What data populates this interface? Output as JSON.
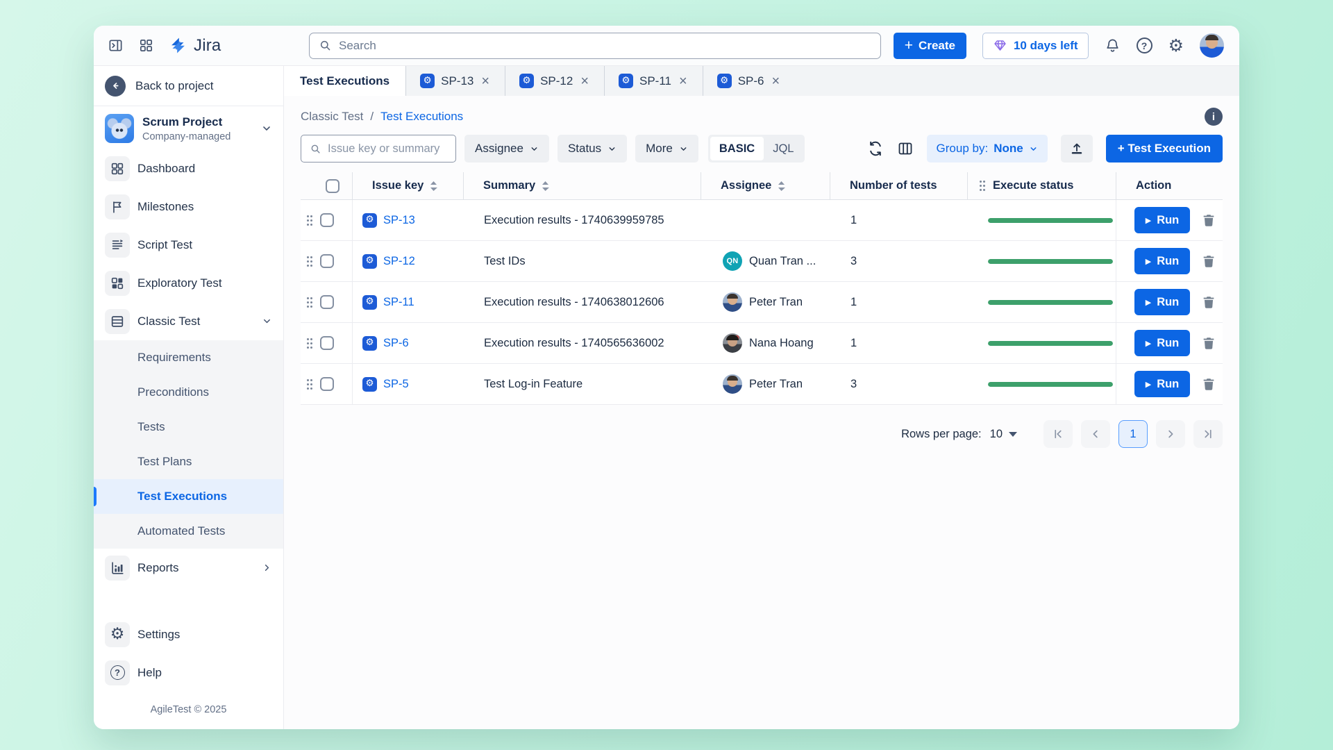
{
  "icons": {
    "gear": "⚙",
    "help": "?",
    "info": "i",
    "close": "×",
    "play": "▶",
    "plus": "+"
  },
  "topbar": {
    "logo": "Jira",
    "search_placeholder": "Search",
    "create_label": "Create",
    "trial_label": "10 days left"
  },
  "tabs": {
    "active_label": "Test Executions",
    "issue_tabs": [
      {
        "key": "SP-13"
      },
      {
        "key": "SP-12"
      },
      {
        "key": "SP-11"
      },
      {
        "key": "SP-6"
      }
    ]
  },
  "breadcrumb": {
    "parent": "Classic Test",
    "separator": "/",
    "current": "Test Executions"
  },
  "toolbar": {
    "search_placeholder": "Issue key or summary",
    "filters": [
      "Assignee",
      "Status",
      "More"
    ],
    "mode_basic": "BASIC",
    "mode_jql": "JQL",
    "active_mode": "BASIC",
    "group_by_label": "Group by:",
    "group_by_value": "None",
    "create_execution_label": "+ Test Execution"
  },
  "table": {
    "headers": {
      "issue_key": "Issue key",
      "summary": "Summary",
      "assignee": "Assignee",
      "number_of_tests": "Number of tests",
      "execute_status": "Execute status",
      "action": "Action"
    },
    "run_label": "Run",
    "rows": [
      {
        "key": "SP-13",
        "summary": "Execution results - 1740639959785",
        "assignee": "",
        "tests": "1",
        "progress_pct": 100
      },
      {
        "key": "SP-12",
        "summary": "Test IDs",
        "assignee": "Quan Tran ...",
        "avatar_initials": "QN",
        "tests": "3",
        "progress_pct": 100
      },
      {
        "key": "SP-11",
        "summary": "Execution results - 1740638012606",
        "assignee": "Peter Tran",
        "tests": "1",
        "progress_pct": 100
      },
      {
        "key": "SP-6",
        "summary": "Execution results - 1740565636002",
        "assignee": "Nana Hoang",
        "tests": "1",
        "progress_pct": 100
      },
      {
        "key": "SP-5",
        "summary": "Test Log-in Feature",
        "assignee": "Peter Tran",
        "tests": "3",
        "progress_pct": 100
      }
    ]
  },
  "pagination": {
    "rows_per_page_label": "Rows per page:",
    "rows_per_page_value": "10",
    "page": "1"
  },
  "sidebar": {
    "back_label": "Back to project",
    "project": {
      "name": "Scrum Project",
      "type": "Company-managed"
    },
    "items": [
      {
        "label": "Dashboard"
      },
      {
        "label": "Milestones"
      },
      {
        "label": "Script Test"
      },
      {
        "label": "Exploratory Test"
      },
      {
        "label": "Classic Test"
      }
    ],
    "classic_sub_items": [
      {
        "label": "Requirements"
      },
      {
        "label": "Preconditions"
      },
      {
        "label": "Tests"
      },
      {
        "label": "Test Plans"
      },
      {
        "label": "Test Executions",
        "active": true
      },
      {
        "label": "Automated Tests"
      }
    ],
    "reports_label": "Reports",
    "settings_label": "Settings",
    "help_label": "Help",
    "footer": "AgileTest © 2025"
  },
  "colors": {
    "accent": "#0c66e4",
    "progress_green": "#3da06b",
    "trial_diamond": "#8968e8",
    "active_item_bg": "#e7f0fd",
    "issue_icon_bg": "#1d5bd6"
  }
}
